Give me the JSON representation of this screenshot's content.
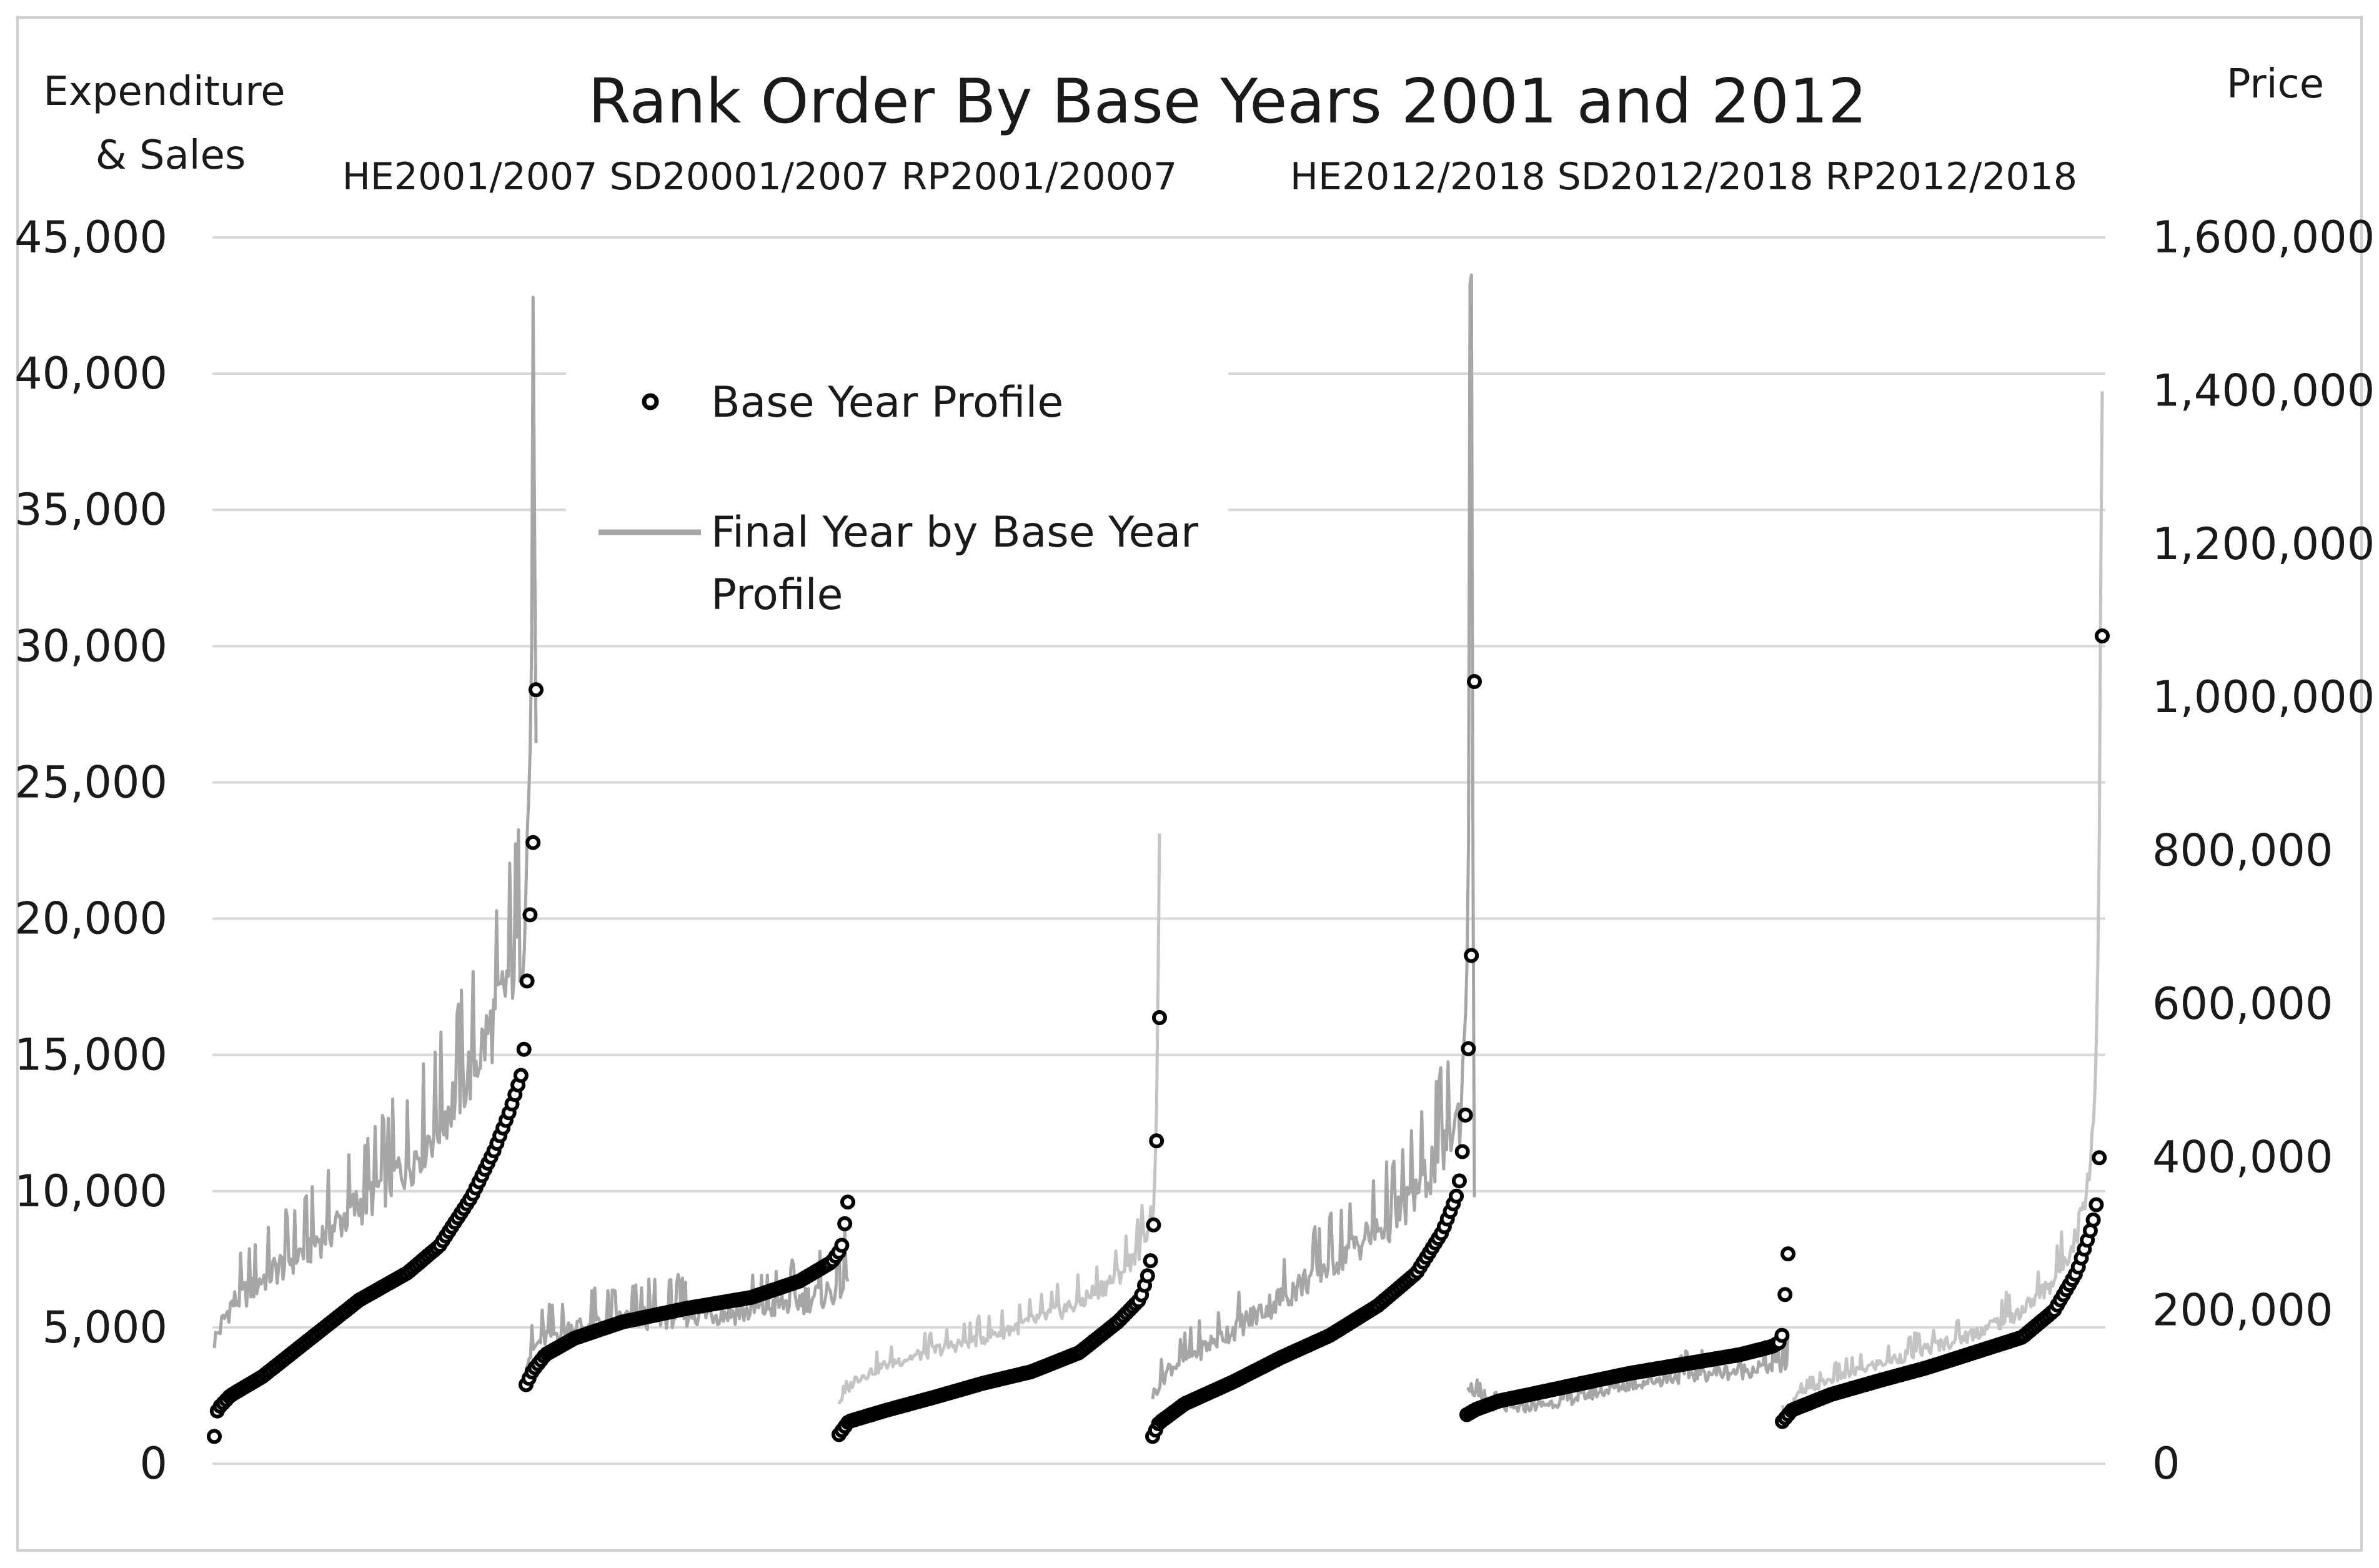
{
  "chart_data": {
    "type": "line",
    "title": "Rank Order By Base Years 2001 and 2012",
    "left_axis_title_line1": "Expenditure",
    "left_axis_title_line2": "& Sales",
    "right_axis_title": "Price",
    "panel_labels_left": "HE2001/2007 SD20001/2007 RP2001/20007",
    "panel_labels_right": "HE2012/2018 SD2012/2018 RP2012/2018",
    "ylim_left": [
      0,
      45000
    ],
    "ylim_right": [
      0,
      1600000
    ],
    "yticks_left": [
      "0",
      "5,000",
      "10,000",
      "15,000",
      "20,000",
      "25,000",
      "30,000",
      "35,000",
      "40,000",
      "45,000"
    ],
    "yticks_right": [
      "0",
      "200,000",
      "400,000",
      "600,000",
      "800,000",
      "1,000,000",
      "1,200,000",
      "1,400,000",
      "1,600,000"
    ],
    "grid": true,
    "legend_placement": "upper-center",
    "legend": [
      {
        "label": "Base Year Profile",
        "marker": "circle",
        "color": "#000000"
      },
      {
        "label_line1": "Final Year by Base Year",
        "label_line2": "Profile",
        "marker": "line",
        "color": "#a6a6a6"
      }
    ],
    "colors": {
      "base": "#000000",
      "final_dark": "#a6a6a6",
      "final_light": "#c4c4c4",
      "grid": "#d9d9d9"
    },
    "panels": [
      {
        "name": "HE2001/2007",
        "axis": "left",
        "final_color": "dark",
        "base_profile": [
          [
            0,
            1000
          ],
          [
            0.01,
            2000
          ],
          [
            0.05,
            2500
          ],
          [
            0.15,
            3200
          ],
          [
            0.3,
            4600
          ],
          [
            0.45,
            6000
          ],
          [
            0.6,
            7000
          ],
          [
            0.7,
            8000
          ],
          [
            0.8,
            9800
          ],
          [
            0.87,
            11500
          ],
          [
            0.92,
            13000
          ],
          [
            0.96,
            14500
          ],
          [
            0.97,
            17200
          ],
          [
            0.98,
            19800
          ],
          [
            0.99,
            22400
          ],
          [
            1.0,
            28400
          ]
        ],
        "final_profile": [
          [
            0,
            4500
          ],
          [
            0.05,
            5800
          ],
          [
            0.15,
            6800
          ],
          [
            0.3,
            8000
          ],
          [
            0.45,
            9500
          ],
          [
            0.6,
            11000
          ],
          [
            0.7,
            12500
          ],
          [
            0.8,
            14500
          ],
          [
            0.88,
            16500
          ],
          [
            0.93,
            18500
          ],
          [
            0.96,
            19500
          ],
          [
            0.98,
            25000
          ],
          [
            0.995,
            38200
          ],
          [
            1.0,
            25000
          ]
        ]
      },
      {
        "name": "SD2001/2007",
        "axis": "left",
        "final_color": "dark",
        "base_profile": [
          [
            0,
            2900
          ],
          [
            0.02,
            3400
          ],
          [
            0.06,
            4000
          ],
          [
            0.15,
            4600
          ],
          [
            0.3,
            5200
          ],
          [
            0.5,
            5700
          ],
          [
            0.7,
            6100
          ],
          [
            0.85,
            6700
          ],
          [
            0.95,
            7400
          ],
          [
            0.98,
            7900
          ],
          [
            1.0,
            9600
          ]
        ],
        "final_profile": [
          [
            0,
            3800
          ],
          [
            0.05,
            4600
          ],
          [
            0.15,
            5000
          ],
          [
            0.3,
            5300
          ],
          [
            0.5,
            5500
          ],
          [
            0.7,
            5600
          ],
          [
            0.85,
            6000
          ],
          [
            0.95,
            6300
          ],
          [
            1.0,
            6800
          ]
        ]
      },
      {
        "name": "RP2001/2007",
        "axis": "right",
        "final_color": "light",
        "base_profile": [
          [
            0,
            38000
          ],
          [
            0.03,
            55000
          ],
          [
            0.15,
            70000
          ],
          [
            0.3,
            87000
          ],
          [
            0.45,
            105000
          ],
          [
            0.6,
            120000
          ],
          [
            0.75,
            145000
          ],
          [
            0.87,
            185000
          ],
          [
            0.94,
            215000
          ],
          [
            0.97,
            255000
          ],
          [
            0.985,
            330000
          ],
          [
            0.99,
            410000
          ],
          [
            1.0,
            582000
          ]
        ],
        "final_profile": [
          [
            0,
            80000
          ],
          [
            0.05,
            110000
          ],
          [
            0.15,
            130000
          ],
          [
            0.3,
            148000
          ],
          [
            0.45,
            165000
          ],
          [
            0.6,
            185000
          ],
          [
            0.75,
            210000
          ],
          [
            0.87,
            245000
          ],
          [
            0.94,
            285000
          ],
          [
            0.98,
            330000
          ],
          [
            0.995,
            500000
          ],
          [
            1.0,
            860000
          ]
        ]
      },
      {
        "name": "HE2012/2018",
        "axis": "left",
        "final_color": "dark",
        "base_profile": [
          [
            0,
            1000
          ],
          [
            0.02,
            1500
          ],
          [
            0.1,
            2200
          ],
          [
            0.25,
            3000
          ],
          [
            0.4,
            3900
          ],
          [
            0.55,
            4700
          ],
          [
            0.7,
            5800
          ],
          [
            0.82,
            7000
          ],
          [
            0.9,
            8500
          ],
          [
            0.95,
            10000
          ],
          [
            0.97,
            12300
          ],
          [
            0.98,
            14800
          ],
          [
            0.99,
            18100
          ],
          [
            0.995,
            22300
          ],
          [
            1.0,
            28700
          ]
        ],
        "final_profile": [
          [
            0,
            2500
          ],
          [
            0.05,
            3500
          ],
          [
            0.15,
            4200
          ],
          [
            0.3,
            5300
          ],
          [
            0.45,
            6500
          ],
          [
            0.6,
            7800
          ],
          [
            0.75,
            9000
          ],
          [
            0.85,
            10500
          ],
          [
            0.92,
            12000
          ],
          [
            0.96,
            13000
          ],
          [
            0.98,
            20000
          ],
          [
            0.99,
            44200
          ],
          [
            1.0,
            8000
          ]
        ]
      },
      {
        "name": "SD2012/2018",
        "axis": "left",
        "final_color": "dark",
        "base_profile": [
          [
            0,
            1800
          ],
          [
            0.03,
            2000
          ],
          [
            0.1,
            2300
          ],
          [
            0.3,
            2800
          ],
          [
            0.5,
            3300
          ],
          [
            0.7,
            3700
          ],
          [
            0.85,
            4000
          ],
          [
            0.95,
            4300
          ],
          [
            0.98,
            4500
          ],
          [
            1.0,
            7700
          ]
        ],
        "final_profile": [
          [
            0,
            3000
          ],
          [
            0.05,
            2200
          ],
          [
            0.15,
            2000
          ],
          [
            0.3,
            2300
          ],
          [
            0.5,
            2900
          ],
          [
            0.7,
            3300
          ],
          [
            0.85,
            3400
          ],
          [
            0.95,
            3600
          ],
          [
            1.0,
            3700
          ]
        ]
      },
      {
        "name": "RP2012/2018",
        "axis": "right",
        "final_color": "light",
        "base_profile": [
          [
            0,
            55000
          ],
          [
            0.03,
            70000
          ],
          [
            0.15,
            90000
          ],
          [
            0.3,
            108000
          ],
          [
            0.45,
            125000
          ],
          [
            0.6,
            145000
          ],
          [
            0.75,
            165000
          ],
          [
            0.85,
            200000
          ],
          [
            0.92,
            250000
          ],
          [
            0.96,
            300000
          ],
          [
            0.98,
            330000
          ],
          [
            0.99,
            390000
          ],
          [
            0.995,
            460000
          ],
          [
            1.0,
            1080000
          ]
        ],
        "final_profile": [
          [
            0,
            65000
          ],
          [
            0.05,
            90000
          ],
          [
            0.15,
            110000
          ],
          [
            0.3,
            130000
          ],
          [
            0.45,
            150000
          ],
          [
            0.6,
            170000
          ],
          [
            0.75,
            200000
          ],
          [
            0.85,
            240000
          ],
          [
            0.92,
            300000
          ],
          [
            0.96,
            380000
          ],
          [
            0.98,
            500000
          ],
          [
            0.99,
            800000
          ],
          [
            1.0,
            1440000
          ]
        ]
      }
    ]
  }
}
